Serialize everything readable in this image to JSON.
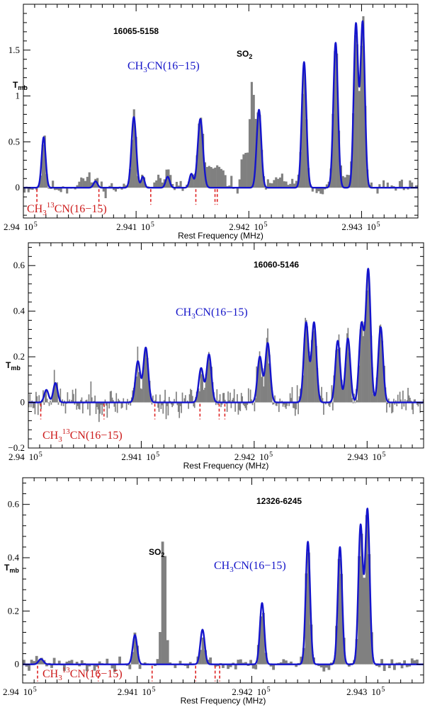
{
  "x_axis": {
    "xlabel": "Rest Frequency (MHz)",
    "xlim": [
      294000,
      294350
    ],
    "ticks": [
      {
        "mantissa": "2.94",
        "exp": "5",
        "base": "10",
        "value": 294000
      },
      {
        "mantissa": "2.941",
        "exp": "5",
        "base": "10",
        "value": 294100
      },
      {
        "mantissa": "2.942",
        "exp": "5",
        "base": "10",
        "value": 294200
      },
      {
        "mantissa": "2.943",
        "exp": "5",
        "base": "10",
        "value": 294300
      }
    ]
  },
  "chart_data": [
    {
      "type": "bar",
      "title": "16065-5158",
      "ylabel_main": "T",
      "ylabel_sub": "mb",
      "ylim": [
        -0.33,
        2.0
      ],
      "yticks": [
        {
          "label": "0",
          "value": 0
        },
        {
          "label": "0.5",
          "value": 0.5
        },
        {
          "label": "1",
          "value": 1
        },
        {
          "label": "1.5",
          "value": 1.5
        }
      ],
      "main_line": {
        "prefix": "CH",
        "sub": "3",
        "suffix": "CN(16−15)"
      },
      "iso_line": {
        "prefix": "CH",
        "sub": "3",
        "sup": "13",
        "suffix": "CN(16−15)"
      },
      "annotations": [
        {
          "text_main": "SO",
          "text_sub": "2",
          "x": 294199,
          "y": 1.42
        }
      ],
      "iso_markers": [
        294012,
        294067,
        294113,
        294153,
        294170,
        294172
      ],
      "fit_components": [
        {
          "center": 294018,
          "amp": 0.55,
          "fwhm": 4.2
        },
        {
          "center": 294064,
          "amp": 0.07,
          "fwhm": 4.2
        },
        {
          "center": 294098,
          "amp": 0.77,
          "fwhm": 5.0
        },
        {
          "center": 294106,
          "amp": 0.12,
          "fwhm": 3.5
        },
        {
          "center": 294128,
          "amp": 0.12,
          "fwhm": 4.2
        },
        {
          "center": 294149,
          "amp": 0.15,
          "fwhm": 4.0
        },
        {
          "center": 294157,
          "amp": 0.75,
          "fwhm": 5.5
        },
        {
          "center": 294209,
          "amp": 0.85,
          "fwhm": 4.8
        },
        {
          "center": 294249,
          "amp": 1.37,
          "fwhm": 4.8
        },
        {
          "center": 294277,
          "amp": 1.58,
          "fwhm": 4.8
        },
        {
          "center": 294295,
          "amp": 1.78,
          "fwhm": 4.6
        },
        {
          "center": 294301,
          "amp": 1.8,
          "fwhm": 4.6
        }
      ],
      "spectrum": {
        "channel_width": 1.8,
        "noise_level": 0.07,
        "noise_seed": 11,
        "extra_peaks": [
          {
            "center": 294203,
            "amp": 1.1,
            "fwhm": 5.5
          },
          {
            "center": 294196,
            "amp": 0.45,
            "fwhm": 5.0
          },
          {
            "center": 294170,
            "amp": 0.22,
            "fwhm": 18
          },
          {
            "center": 294055,
            "amp": 0.1,
            "fwhm": 14
          },
          {
            "center": 294120,
            "amp": 0.1,
            "fwhm": 18
          },
          {
            "center": 294230,
            "amp": 0.1,
            "fwhm": 15
          },
          {
            "center": 294285,
            "amp": 0.12,
            "fwhm": 12
          }
        ]
      }
    },
    {
      "type": "bar",
      "title": "16060-5146",
      "ylabel_main": "T",
      "ylabel_sub": "mb",
      "ylim": [
        -0.2,
        0.7
      ],
      "yticks": [
        {
          "label": "−0.2",
          "value": -0.2
        },
        {
          "label": "0",
          "value": 0
        },
        {
          "label": "0.2",
          "value": 0.2
        },
        {
          "label": "0.4",
          "value": 0.4
        },
        {
          "label": "0.6",
          "value": 0.6
        }
      ],
      "main_line": {
        "prefix": "CH",
        "sub": "3",
        "suffix": "CN(16−15)"
      },
      "iso_line": {
        "prefix": "CH",
        "sub": "3",
        "sup": "13",
        "suffix": "CN(16−15)"
      },
      "annotations": [],
      "iso_markers": [
        294011,
        294067,
        294112,
        294152,
        294169,
        294174
      ],
      "fit_components": [
        {
          "center": 294016,
          "amp": 0.055,
          "fwhm": 4.5
        },
        {
          "center": 294024,
          "amp": 0.085,
          "fwhm": 4.5
        },
        {
          "center": 294097,
          "amp": 0.18,
          "fwhm": 5.0
        },
        {
          "center": 294104,
          "amp": 0.24,
          "fwhm": 5.0
        },
        {
          "center": 294153,
          "amp": 0.15,
          "fwhm": 5.0
        },
        {
          "center": 294160,
          "amp": 0.21,
          "fwhm": 5.0
        },
        {
          "center": 294205,
          "amp": 0.2,
          "fwhm": 5.0
        },
        {
          "center": 294212,
          "amp": 0.26,
          "fwhm": 5.0
        },
        {
          "center": 294246,
          "amp": 0.35,
          "fwhm": 5.0
        },
        {
          "center": 294253,
          "amp": 0.35,
          "fwhm": 5.0
        },
        {
          "center": 294274,
          "amp": 0.27,
          "fwhm": 5.0
        },
        {
          "center": 294283,
          "amp": 0.28,
          "fwhm": 5.0
        },
        {
          "center": 294295,
          "amp": 0.34,
          "fwhm": 5.0
        },
        {
          "center": 294301,
          "amp": 0.58,
          "fwhm": 5.0
        },
        {
          "center": 294312,
          "amp": 0.33,
          "fwhm": 5.0
        }
      ],
      "spectrum": {
        "channel_width": 0.9,
        "noise_level": 0.055,
        "noise_seed": 23,
        "extra_peaks": []
      }
    },
    {
      "type": "bar",
      "title": "12326-6245",
      "ylabel_main": "T",
      "ylabel_sub": "mb",
      "ylim": [
        -0.07,
        0.7
      ],
      "yticks": [
        {
          "label": "0",
          "value": 0
        },
        {
          "label": "0.2",
          "value": 0.2
        },
        {
          "label": "0.4",
          "value": 0.4
        },
        {
          "label": "0.6",
          "value": 0.6
        }
      ],
      "main_line": {
        "prefix": "CH",
        "sub": "3",
        "suffix": "CN(16−15)"
      },
      "iso_line": {
        "prefix": "CH",
        "sub": "3",
        "sup": "13",
        "suffix": "CN(16−15)"
      },
      "annotations": [
        {
          "text_main": "SO",
          "text_sub": "2",
          "x": 294120,
          "y": 0.56
        }
      ],
      "iso_markers": [
        294013,
        294066,
        294113,
        294151,
        294168,
        294172
      ],
      "fit_components": [
        {
          "center": 294016,
          "amp": 0.02,
          "fwhm": 5.0
        },
        {
          "center": 294098,
          "amp": 0.11,
          "fwhm": 4.5
        },
        {
          "center": 294157,
          "amp": 0.13,
          "fwhm": 4.5
        },
        {
          "center": 294209,
          "amp": 0.23,
          "fwhm": 4.5
        },
        {
          "center": 294249,
          "amp": 0.46,
          "fwhm": 4.5
        },
        {
          "center": 294277,
          "amp": 0.44,
          "fwhm": 4.5
        },
        {
          "center": 294295,
          "amp": 0.52,
          "fwhm": 4.6
        },
        {
          "center": 294301,
          "amp": 0.58,
          "fwhm": 4.6
        }
      ],
      "spectrum": {
        "channel_width": 2.2,
        "noise_level": 0.022,
        "noise_seed": 41,
        "extra_peaks": [
          {
            "center": 294123,
            "amp": 0.52,
            "fwhm": 4.5
          }
        ]
      }
    }
  ]
}
